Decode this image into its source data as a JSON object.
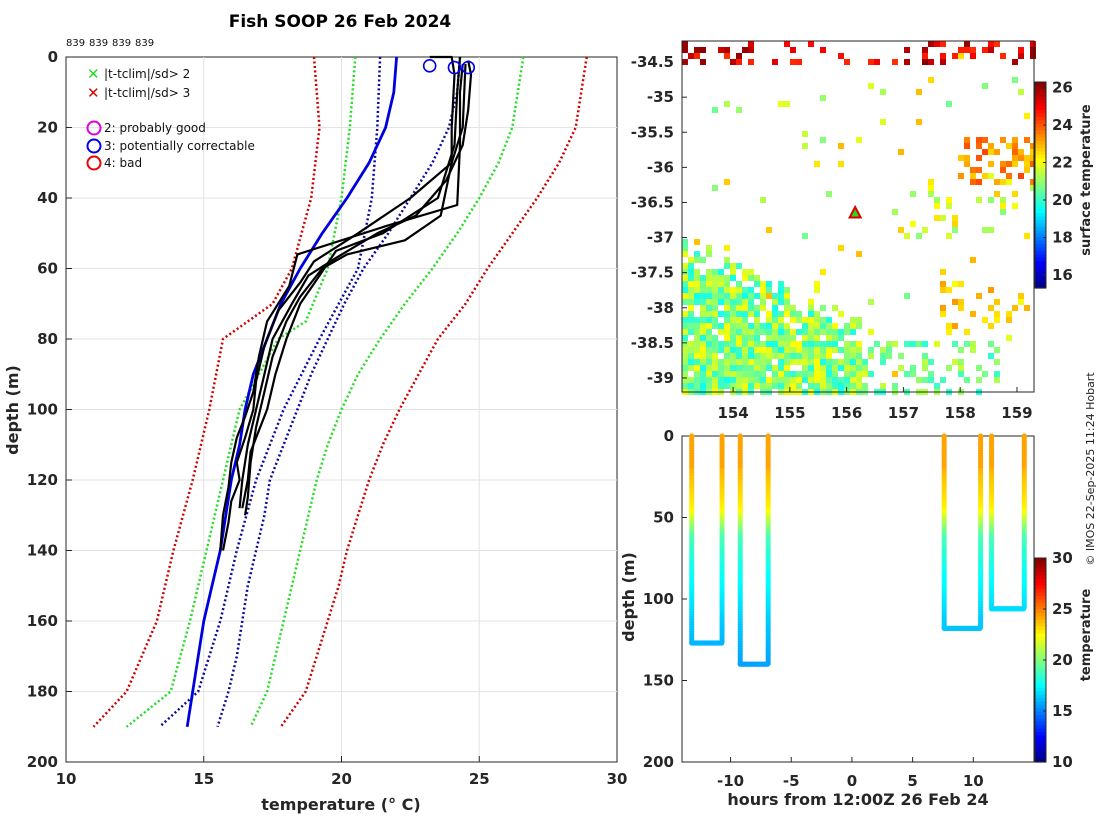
{
  "title": "Fish SOOP 26 Feb 2024",
  "ids": [
    "839",
    "839",
    "839",
    "839"
  ],
  "credit": "© IMOS 22-Sep-2025 11:24 Hobart",
  "legend": {
    "cross_green": "|t-tclim|/sd> 2",
    "cross_red": "|t-tclim|/sd> 3",
    "circle_magenta": "2: probably good",
    "circle_blue": "3: potentially correctable",
    "circle_red": "4: bad"
  },
  "colors": {
    "green": "#22dd22",
    "red": "#cc0000",
    "blue": "#0000dd",
    "navy": "#0a0a9c",
    "black": "#000000",
    "magenta": "#e000e0"
  },
  "chart_data": [
    {
      "type": "line",
      "title": "Fish SOOP 26 Feb 2024",
      "xlabel": "temperature (° C)",
      "ylabel": "depth (m)",
      "xlim": [
        10,
        30
      ],
      "ylim": [
        200,
        0
      ],
      "xticks": [
        10,
        15,
        20,
        25,
        30
      ],
      "yticks": [
        0,
        20,
        40,
        60,
        80,
        100,
        120,
        140,
        160,
        180,
        200
      ],
      "series": [
        {
          "name": "clim -3sd",
          "style": "dotted",
          "color": "red",
          "points": [
            [
              19,
              0
            ],
            [
              19.2,
              20
            ],
            [
              18.9,
              40
            ],
            [
              18.2,
              60
            ],
            [
              17.5,
              70
            ],
            [
              15.7,
              80
            ],
            [
              15.2,
              100
            ],
            [
              14.6,
              120
            ],
            [
              13.9,
              140
            ],
            [
              13.3,
              160
            ],
            [
              12.2,
              180
            ],
            [
              11,
              190
            ]
          ]
        },
        {
          "name": "clim -2sd",
          "style": "dotted",
          "color": "green",
          "points": [
            [
              20.5,
              0
            ],
            [
              20.3,
              20
            ],
            [
              20,
              40
            ],
            [
              19.5,
              60
            ],
            [
              18.7,
              75
            ],
            [
              17.7,
              80
            ],
            [
              16.3,
              100
            ],
            [
              15.7,
              120
            ],
            [
              15.1,
              140
            ],
            [
              14.5,
              160
            ],
            [
              13.8,
              180
            ],
            [
              12.2,
              190
            ]
          ]
        },
        {
          "name": "clim -1sd",
          "style": "dotted",
          "color": "navy",
          "points": [
            [
              21.4,
              0
            ],
            [
              21.3,
              20
            ],
            [
              21.1,
              40
            ],
            [
              20.6,
              60
            ],
            [
              19.9,
              70
            ],
            [
              19.2,
              80
            ],
            [
              17.9,
              100
            ],
            [
              16.9,
              120
            ],
            [
              16.2,
              140
            ],
            [
              15.6,
              160
            ],
            [
              14.8,
              180
            ],
            [
              13.4,
              190
            ]
          ]
        },
        {
          "name": "climatology mean",
          "style": "solid",
          "color": "blue",
          "points": [
            [
              22,
              0
            ],
            [
              21.9,
              10
            ],
            [
              21.6,
              20
            ],
            [
              21,
              30
            ],
            [
              20.2,
              40
            ],
            [
              19.3,
              50
            ],
            [
              18.5,
              60
            ],
            [
              17.8,
              70
            ],
            [
              17.3,
              80
            ],
            [
              16.8,
              90
            ],
            [
              16.5,
              100
            ],
            [
              16.3,
              110
            ],
            [
              16,
              120
            ],
            [
              15.8,
              130
            ],
            [
              15.6,
              140
            ],
            [
              15.3,
              150
            ],
            [
              15,
              160
            ],
            [
              14.8,
              170
            ],
            [
              14.6,
              180
            ],
            [
              14.4,
              190
            ]
          ]
        },
        {
          "name": "clim +1sd",
          "style": "dotted",
          "color": "navy",
          "points": [
            [
              24.3,
              0
            ],
            [
              24.2,
              10
            ],
            [
              23.9,
              20
            ],
            [
              23.3,
              30
            ],
            [
              22.5,
              40
            ],
            [
              21.7,
              50
            ],
            [
              20.8,
              60
            ],
            [
              20.1,
              70
            ],
            [
              19.5,
              80
            ],
            [
              18.9,
              90
            ],
            [
              18.4,
              100
            ],
            [
              17.9,
              110
            ],
            [
              17.4,
              120
            ],
            [
              17.2,
              130
            ],
            [
              16.9,
              140
            ],
            [
              16.6,
              150
            ],
            [
              16.4,
              160
            ],
            [
              16.2,
              170
            ],
            [
              15.9,
              180
            ],
            [
              15.5,
              190
            ]
          ]
        },
        {
          "name": "clim +2sd",
          "style": "dotted",
          "color": "green",
          "points": [
            [
              26.6,
              0
            ],
            [
              26.4,
              10
            ],
            [
              26.2,
              20
            ],
            [
              25.7,
              30
            ],
            [
              25,
              40
            ],
            [
              24.2,
              50
            ],
            [
              23.3,
              60
            ],
            [
              22.3,
              70
            ],
            [
              21.4,
              80
            ],
            [
              20.6,
              90
            ],
            [
              20,
              100
            ],
            [
              19.5,
              110
            ],
            [
              19.1,
              120
            ],
            [
              18.8,
              130
            ],
            [
              18.5,
              140
            ],
            [
              18.2,
              150
            ],
            [
              17.9,
              160
            ],
            [
              17.6,
              170
            ],
            [
              17.3,
              180
            ],
            [
              16.7,
              190
            ]
          ]
        },
        {
          "name": "clim +3sd",
          "style": "dotted",
          "color": "red",
          "points": [
            [
              28.9,
              0
            ],
            [
              28.7,
              10
            ],
            [
              28.5,
              20
            ],
            [
              27.9,
              30
            ],
            [
              27.1,
              40
            ],
            [
              26.2,
              50
            ],
            [
              25.3,
              60
            ],
            [
              24.5,
              70
            ],
            [
              23.5,
              80
            ],
            [
              22.8,
              90
            ],
            [
              22.1,
              100
            ],
            [
              21.5,
              110
            ],
            [
              21,
              120
            ],
            [
              20.6,
              130
            ],
            [
              20.2,
              140
            ],
            [
              19.9,
              150
            ],
            [
              19.5,
              160
            ],
            [
              19.1,
              170
            ],
            [
              18.7,
              180
            ],
            [
              17.8,
              190
            ]
          ]
        },
        {
          "name": "profile 1",
          "style": "solid",
          "color": "black",
          "points": [
            [
              23.2,
              0
            ],
            [
              24,
              0
            ],
            [
              24.1,
              5
            ],
            [
              24,
              20
            ],
            [
              24,
              30
            ],
            [
              23.6,
              45
            ],
            [
              22.3,
              52
            ],
            [
              20.2,
              56
            ],
            [
              19.3,
              60
            ],
            [
              18.5,
              68
            ],
            [
              18,
              75
            ],
            [
              17.5,
              85
            ],
            [
              17.2,
              95
            ],
            [
              16.9,
              105
            ],
            [
              16.7,
              115
            ],
            [
              16.6,
              125
            ],
            [
              16.5,
              130
            ]
          ]
        },
        {
          "name": "profile 2",
          "style": "solid",
          "color": "black",
          "points": [
            [
              24.3,
              0
            ],
            [
              24.2,
              10
            ],
            [
              24.1,
              25
            ],
            [
              23.5,
              40
            ],
            [
              21.5,
              50
            ],
            [
              19.8,
              55
            ],
            [
              19.2,
              62
            ],
            [
              18.5,
              70
            ],
            [
              18,
              80
            ],
            [
              17.6,
              90
            ],
            [
              17.3,
              100
            ],
            [
              16.9,
              108
            ],
            [
              16.7,
              112
            ],
            [
              16.6,
              120
            ],
            [
              16.4,
              128
            ]
          ]
        },
        {
          "name": "profile 3",
          "style": "solid",
          "color": "black",
          "points": [
            [
              24.6,
              1
            ],
            [
              24.7,
              5
            ],
            [
              24.6,
              15
            ],
            [
              24.4,
              25
            ],
            [
              23.8,
              35
            ],
            [
              22.7,
              45
            ],
            [
              21.3,
              50
            ],
            [
              19.8,
              57
            ],
            [
              18.8,
              62
            ],
            [
              18.2,
              70
            ],
            [
              17.5,
              80
            ],
            [
              17.2,
              90
            ],
            [
              16.9,
              100
            ],
            [
              16.6,
              110
            ],
            [
              16.4,
              120
            ],
            [
              16.3,
              128
            ]
          ]
        },
        {
          "name": "profile 4",
          "style": "solid",
          "color": "black",
          "points": [
            [
              24.4,
              2
            ],
            [
              24.3,
              10
            ],
            [
              24.3,
              25
            ],
            [
              24.2,
              42
            ],
            [
              21.6,
              48
            ],
            [
              18.4,
              56
            ],
            [
              18.1,
              65
            ],
            [
              17.3,
              75
            ],
            [
              17,
              85
            ],
            [
              16.8,
              95
            ],
            [
              16.5,
              102
            ],
            [
              16.2,
              108
            ],
            [
              16,
              115
            ],
            [
              15.9,
              122
            ],
            [
              15.7,
              130
            ],
            [
              15.6,
              140
            ]
          ]
        },
        {
          "name": "profile 5",
          "style": "solid",
          "color": "black",
          "points": [
            [
              24.5,
              2
            ],
            [
              24.4,
              20
            ],
            [
              24,
              30
            ],
            [
              22.5,
              40
            ],
            [
              20.6,
              50
            ],
            [
              19,
              58
            ],
            [
              18.5,
              64
            ],
            [
              17.7,
              72
            ],
            [
              17.2,
              82
            ],
            [
              16.9,
              92
            ],
            [
              16.8,
              100
            ],
            [
              16.5,
              108
            ],
            [
              16.2,
              115
            ],
            [
              16.3,
              120
            ],
            [
              16,
              126
            ],
            [
              15.9,
              132
            ],
            [
              15.7,
              140
            ]
          ]
        }
      ],
      "qc_circles": [
        {
          "t": 23.2,
          "depth": 2.5,
          "flag": "3: potentially correctable"
        },
        {
          "t": 24.1,
          "depth": 3,
          "flag": "3: potentially correctable"
        },
        {
          "t": 24.6,
          "depth": 3,
          "flag": "3: potentially correctable"
        }
      ]
    },
    {
      "type": "heatmap",
      "xlim": [
        153.1,
        159.3
      ],
      "ylim": [
        -39.2,
        -34.2
      ],
      "xticks": [
        154,
        155,
        156,
        157,
        158,
        159
      ],
      "yticks": [
        -34.5,
        -35,
        -35.5,
        -36,
        -36.5,
        -37,
        -37.5,
        -38,
        -38.5,
        -39
      ],
      "colorbar": {
        "label": "surface temperature",
        "ticks": [
          16,
          18,
          20,
          22,
          24,
          26
        ],
        "range": [
          15.3,
          26.3
        ]
      },
      "marker": {
        "lon": 156.15,
        "lat": -36.65,
        "symbol": "triangle"
      }
    },
    {
      "type": "scatter",
      "xlabel": "hours from 12:00Z 26 Feb 24",
      "ylabel": "depth (m)",
      "xlim": [
        -14,
        15
      ],
      "ylim": [
        200,
        0
      ],
      "xticks": [
        -10,
        -5,
        0,
        5,
        10
      ],
      "yticks": [
        0,
        50,
        100,
        150,
        200
      ],
      "colorbar": {
        "label": "temperature",
        "ticks": [
          10,
          15,
          20,
          25,
          30
        ],
        "range": [
          10,
          30
        ]
      },
      "casts": [
        {
          "start": -13.2,
          "end": -10.7,
          "bottom": 127
        },
        {
          "start": -9.2,
          "end": -6.9,
          "bottom": 140
        },
        {
          "start": 7.6,
          "end": 10.6,
          "bottom": 118
        },
        {
          "start": 11.5,
          "end": 14.2,
          "bottom": 106
        }
      ]
    }
  ]
}
